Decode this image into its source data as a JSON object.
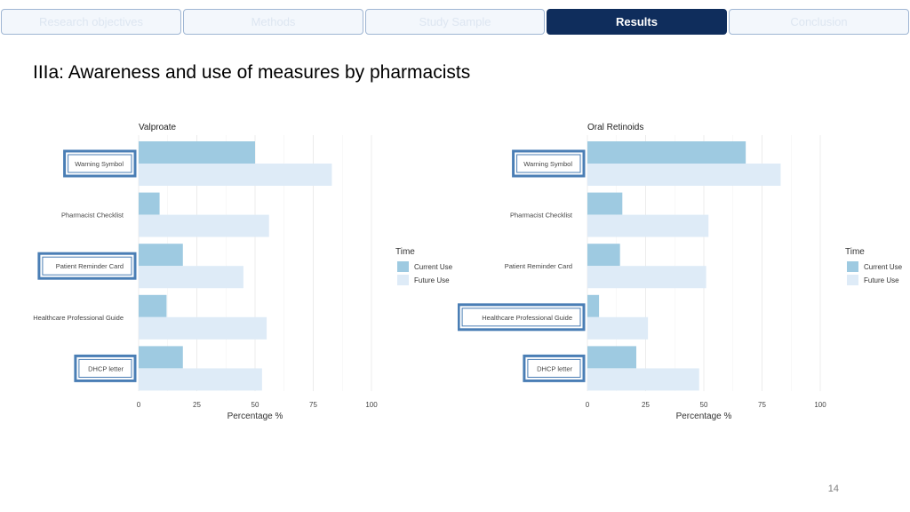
{
  "tabs": [
    {
      "label": "Research objectives",
      "active": false
    },
    {
      "label": "Methods",
      "active": false
    },
    {
      "label": "Study Sample",
      "active": false
    },
    {
      "label": "Results",
      "active": true
    },
    {
      "label": "Conclusion",
      "active": false
    }
  ],
  "page_title": "IIIa: Awareness and use of measures by pharmacists",
  "page_number": "14",
  "colors": {
    "current_use": "#9ecae1",
    "future_use": "#deebf7",
    "active_tab": "#0f2d5c",
    "highlight_box": "#4a7eb5"
  },
  "chart_data": [
    {
      "type": "bar",
      "orientation": "horizontal",
      "title": "Valproate",
      "categories": [
        "Warning Symbol",
        "Pharmacist Checklist",
        "Patient Reminder Card",
        "Healthcare Professional Guide",
        "DHCP letter"
      ],
      "highlighted_categories": [
        "Warning Symbol",
        "Patient Reminder Card",
        "DHCP letter"
      ],
      "series": [
        {
          "name": "Current Use",
          "values": [
            50,
            9,
            19,
            12,
            19
          ]
        },
        {
          "name": "Future Use",
          "values": [
            83,
            56,
            45,
            55,
            53
          ]
        }
      ],
      "xlabel": "Percentage %",
      "xlim": [
        0,
        100
      ],
      "xticks": [
        "0",
        "25",
        "50",
        "75",
        "100"
      ],
      "legend_title": "Time",
      "legend_position": "right",
      "grid": true
    },
    {
      "type": "bar",
      "orientation": "horizontal",
      "title": "Oral Retinoids",
      "categories": [
        "Warning Symbol",
        "Pharmacist Checklist",
        "Patient Reminder Card",
        "Healthcare Professional Guide",
        "DHCP letter"
      ],
      "highlighted_categories": [
        "Warning Symbol",
        "Healthcare Professional Guide",
        "DHCP letter"
      ],
      "series": [
        {
          "name": "Current Use",
          "values": [
            68,
            15,
            14,
            5,
            21
          ]
        },
        {
          "name": "Future Use",
          "values": [
            83,
            52,
            51,
            26,
            48
          ]
        }
      ],
      "xlabel": "Percentage %",
      "xlim": [
        0,
        100
      ],
      "xticks": [
        "0",
        "25",
        "50",
        "75",
        "100"
      ],
      "legend_title": "Time",
      "legend_position": "right",
      "grid": true
    }
  ]
}
